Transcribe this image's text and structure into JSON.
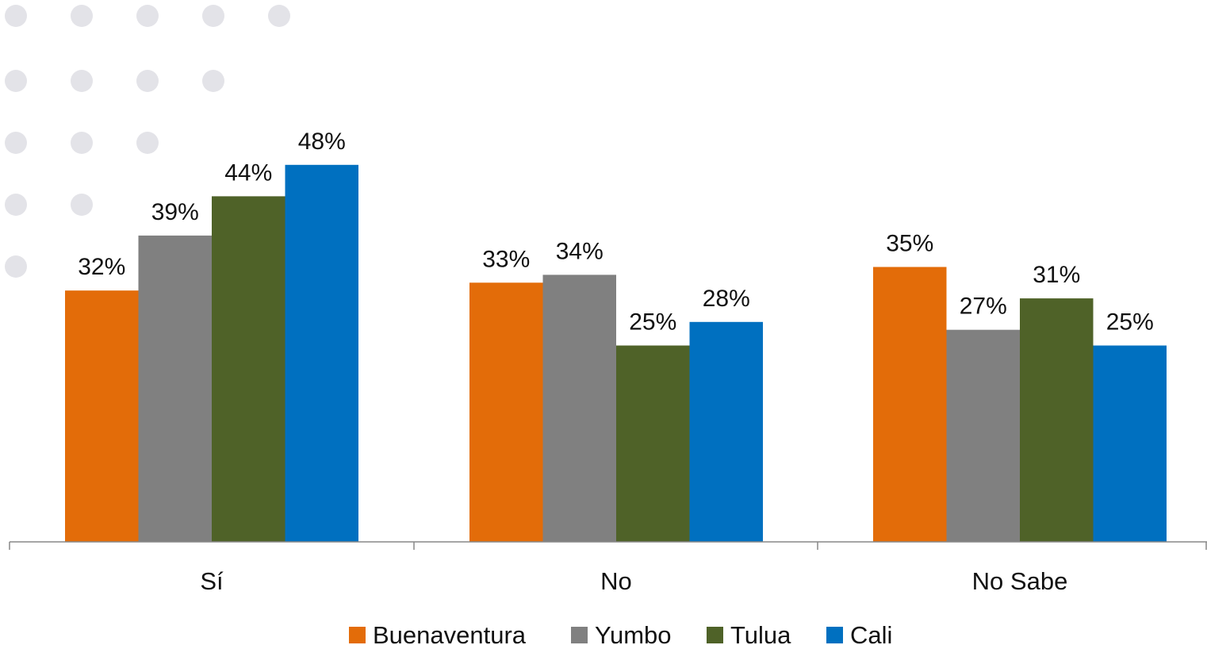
{
  "chart_data": {
    "type": "bar",
    "categories": [
      "Sí",
      "No",
      "No Sabe"
    ],
    "series": [
      {
        "name": "Buenaventura",
        "color": "#E36C09",
        "values": [
          32,
          33,
          35
        ],
        "labels": [
          "32%",
          "33%",
          "35%"
        ]
      },
      {
        "name": "Yumbo",
        "color": "#808080",
        "values": [
          39,
          34,
          27
        ],
        "labels": [
          "39%",
          "34%",
          "27%"
        ]
      },
      {
        "name": "Tulua",
        "color": "#4F6228",
        "values": [
          44,
          25,
          31
        ],
        "labels": [
          "44%",
          "25%",
          "31%"
        ]
      },
      {
        "name": "Cali",
        "color": "#0070C0",
        "values": [
          48,
          28,
          25
        ],
        "labels": [
          "48%",
          "28%",
          "25%"
        ]
      }
    ],
    "ylim": [
      0,
      52
    ],
    "grid": false,
    "legend_position": "bottom-center"
  }
}
